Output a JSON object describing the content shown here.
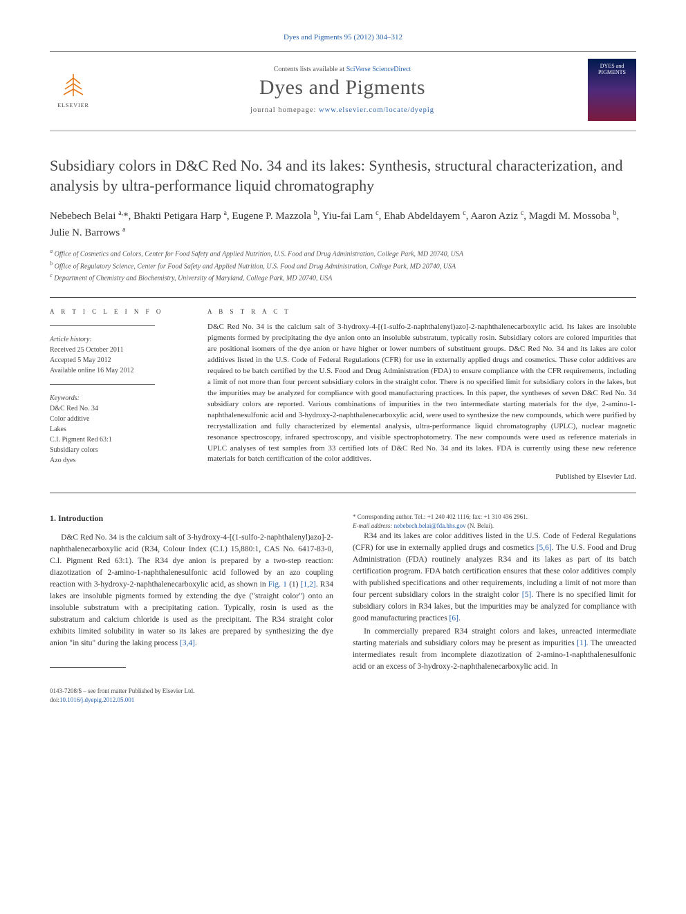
{
  "header_ref": "Dyes and Pigments 95 (2012) 304–312",
  "masthead": {
    "elsevier": "ELSEVIER",
    "contents_prefix": "Contents lists available at ",
    "contents_link": "SciVerse ScienceDirect",
    "journal": "Dyes and Pigments",
    "homepage_prefix": "journal homepage: ",
    "homepage_url": "www.elsevier.com/locate/dyepig",
    "cover_text": "DYES and PIGMENTS"
  },
  "title": "Subsidiary colors in D&C Red No. 34 and its lakes: Synthesis, structural characterization, and analysis by ultra-performance liquid chromatography",
  "authors_html": "Nebebech Belai <sup>a,</sup>*, Bhakti Petigara Harp <sup>a</sup>, Eugene P. Mazzola <sup>b</sup>, Yiu-fai Lam <sup>c</sup>, Ehab Abdeldayem <sup>c</sup>, Aaron Aziz <sup>c</sup>, Magdi M. Mossoba <sup>b</sup>, Julie N. Barrows <sup>a</sup>",
  "affiliations": {
    "a": "Office of Cosmetics and Colors, Center for Food Safety and Applied Nutrition, U.S. Food and Drug Administration, College Park, MD 20740, USA",
    "b": "Office of Regulatory Science, Center for Food Safety and Applied Nutrition, U.S. Food and Drug Administration, College Park, MD 20740, USA",
    "c": "Department of Chemistry and Biochemistry, University of Maryland, College Park, MD 20740, USA"
  },
  "article_info": {
    "label": "A R T I C L E   I N F O",
    "history_head": "Article history:",
    "received": "Received 25 October 2011",
    "accepted": "Accepted 5 May 2012",
    "online": "Available online 16 May 2012",
    "keywords_head": "Keywords:",
    "keywords": [
      "D&C Red No. 34",
      "Color additive",
      "Lakes",
      "C.I. Pigment Red 63:1",
      "Subsidiary colors",
      "Azo dyes"
    ]
  },
  "abstract": {
    "label": "A B S T R A C T",
    "text": "D&C Red No. 34 is the calcium salt of 3-hydroxy-4-[(1-sulfo-2-naphthalenyl)azo]-2-naphthalenecarboxylic acid. Its lakes are insoluble pigments formed by precipitating the dye anion onto an insoluble substratum, typically rosin. Subsidiary colors are colored impurities that are positional isomers of the dye anion or have higher or lower numbers of substituent groups. D&C Red No. 34 and its lakes are color additives listed in the U.S. Code of Federal Regulations (CFR) for use in externally applied drugs and cosmetics. These color additives are required to be batch certified by the U.S. Food and Drug Administration (FDA) to ensure compliance with the CFR requirements, including a limit of not more than four percent subsidiary colors in the straight color. There is no specified limit for subsidiary colors in the lakes, but the impurities may be analyzed for compliance with good manufacturing practices. In this paper, the syntheses of seven D&C Red No. 34 subsidiary colors are reported. Various combinations of impurities in the two intermediate starting materials for the dye, 2-amino-1-naphthalenesulfonic acid and 3-hydroxy-2-naphthalenecarboxylic acid, were used to synthesize the new compounds, which were purified by recrystallization and fully characterized by elemental analysis, ultra-performance liquid chromatography (UPLC), nuclear magnetic resonance spectroscopy, infrared spectroscopy, and visible spectrophotometry. The new compounds were used as reference materials in UPLC analyses of test samples from 33 certified lots of D&C Red No. 34 and its lakes. FDA is currently using these new reference materials for batch certification of the color additives.",
    "pub_note": "Published by Elsevier Ltd."
  },
  "body": {
    "section_heading": "1. Introduction",
    "p1_pre": "D&C Red No. 34 is the calcium salt of 3-hydroxy-4-[(1-sulfo-2-naphthalenyl)azo]-2-naphthalenecarboxylic acid (R34, Colour Index (C.I.) 15,880:1, CAS No. 6417-83-0, C.I. Pigment Red 63:1). The R34 dye anion is prepared by a two-step reaction: diazotization of 2-amino-1-naphthalenesulfonic acid followed by an azo coupling reaction with 3-hydroxy-2-naphthalenecarboxylic acid, as shown in ",
    "fig1": "Fig. 1",
    "p1_mid": " (1) ",
    "cite12": "[1,2]",
    "p1_post": ". R34 lakes are insoluble pigments formed by extending the dye (\"straight color\") onto an insoluble substratum with a precipitating cation. Typically, rosin is used as the substratum and calcium chloride is used as the precipitant. The R34 straight color exhibits limited solubility in water so its lakes are prepared by synthesizing the dye anion \"in situ\" during the laking process ",
    "cite34": "[3,4]",
    "p1_end": ".",
    "p2_pre": "R34 and its lakes are color additives listed in the U.S. Code of Federal Regulations (CFR) for use in externally applied drugs and cosmetics ",
    "cite56": "[5,6]",
    "p2_mid": ". The U.S. Food and Drug Administration (FDA) routinely analyzes R34 and its lakes as part of its batch certification program. FDA batch certification ensures that these color additives comply with published specifications and other requirements, including a limit of not more than four percent subsidiary colors in the straight color ",
    "cite5": "[5]",
    "p2_post": ". There is no specified limit for subsidiary colors in R34 lakes, but the impurities may be analyzed for compliance with good manufacturing practices ",
    "cite6": "[6]",
    "p2_end": ".",
    "p3_pre": "In commercially prepared R34 straight colors and lakes, unreacted intermediate starting materials and subsidiary colors may be present as impurities ",
    "cite1": "[1]",
    "p3_post": ". The unreacted intermediates result from incomplete diazotization of 2-amino-1-naphthalenesulfonic acid or an excess of 3-hydroxy-2-naphthalenecarboxylic acid. In"
  },
  "footnote": {
    "corr": "* Corresponding author. Tel.: +1 240 402 1116; fax: +1 310 436 2961.",
    "email_label": "E-mail address:",
    "email": "nebebech.belai@fda.hhs.gov",
    "email_name": "(N. Belai)."
  },
  "footer": {
    "line1": "0143-7208/$ – see front matter Published by Elsevier Ltd.",
    "doi_prefix": "doi:",
    "doi": "10.1016/j.dyepig.2012.05.001"
  },
  "colors": {
    "link": "#2962ab",
    "text": "#333333",
    "orange": "#e67817"
  }
}
